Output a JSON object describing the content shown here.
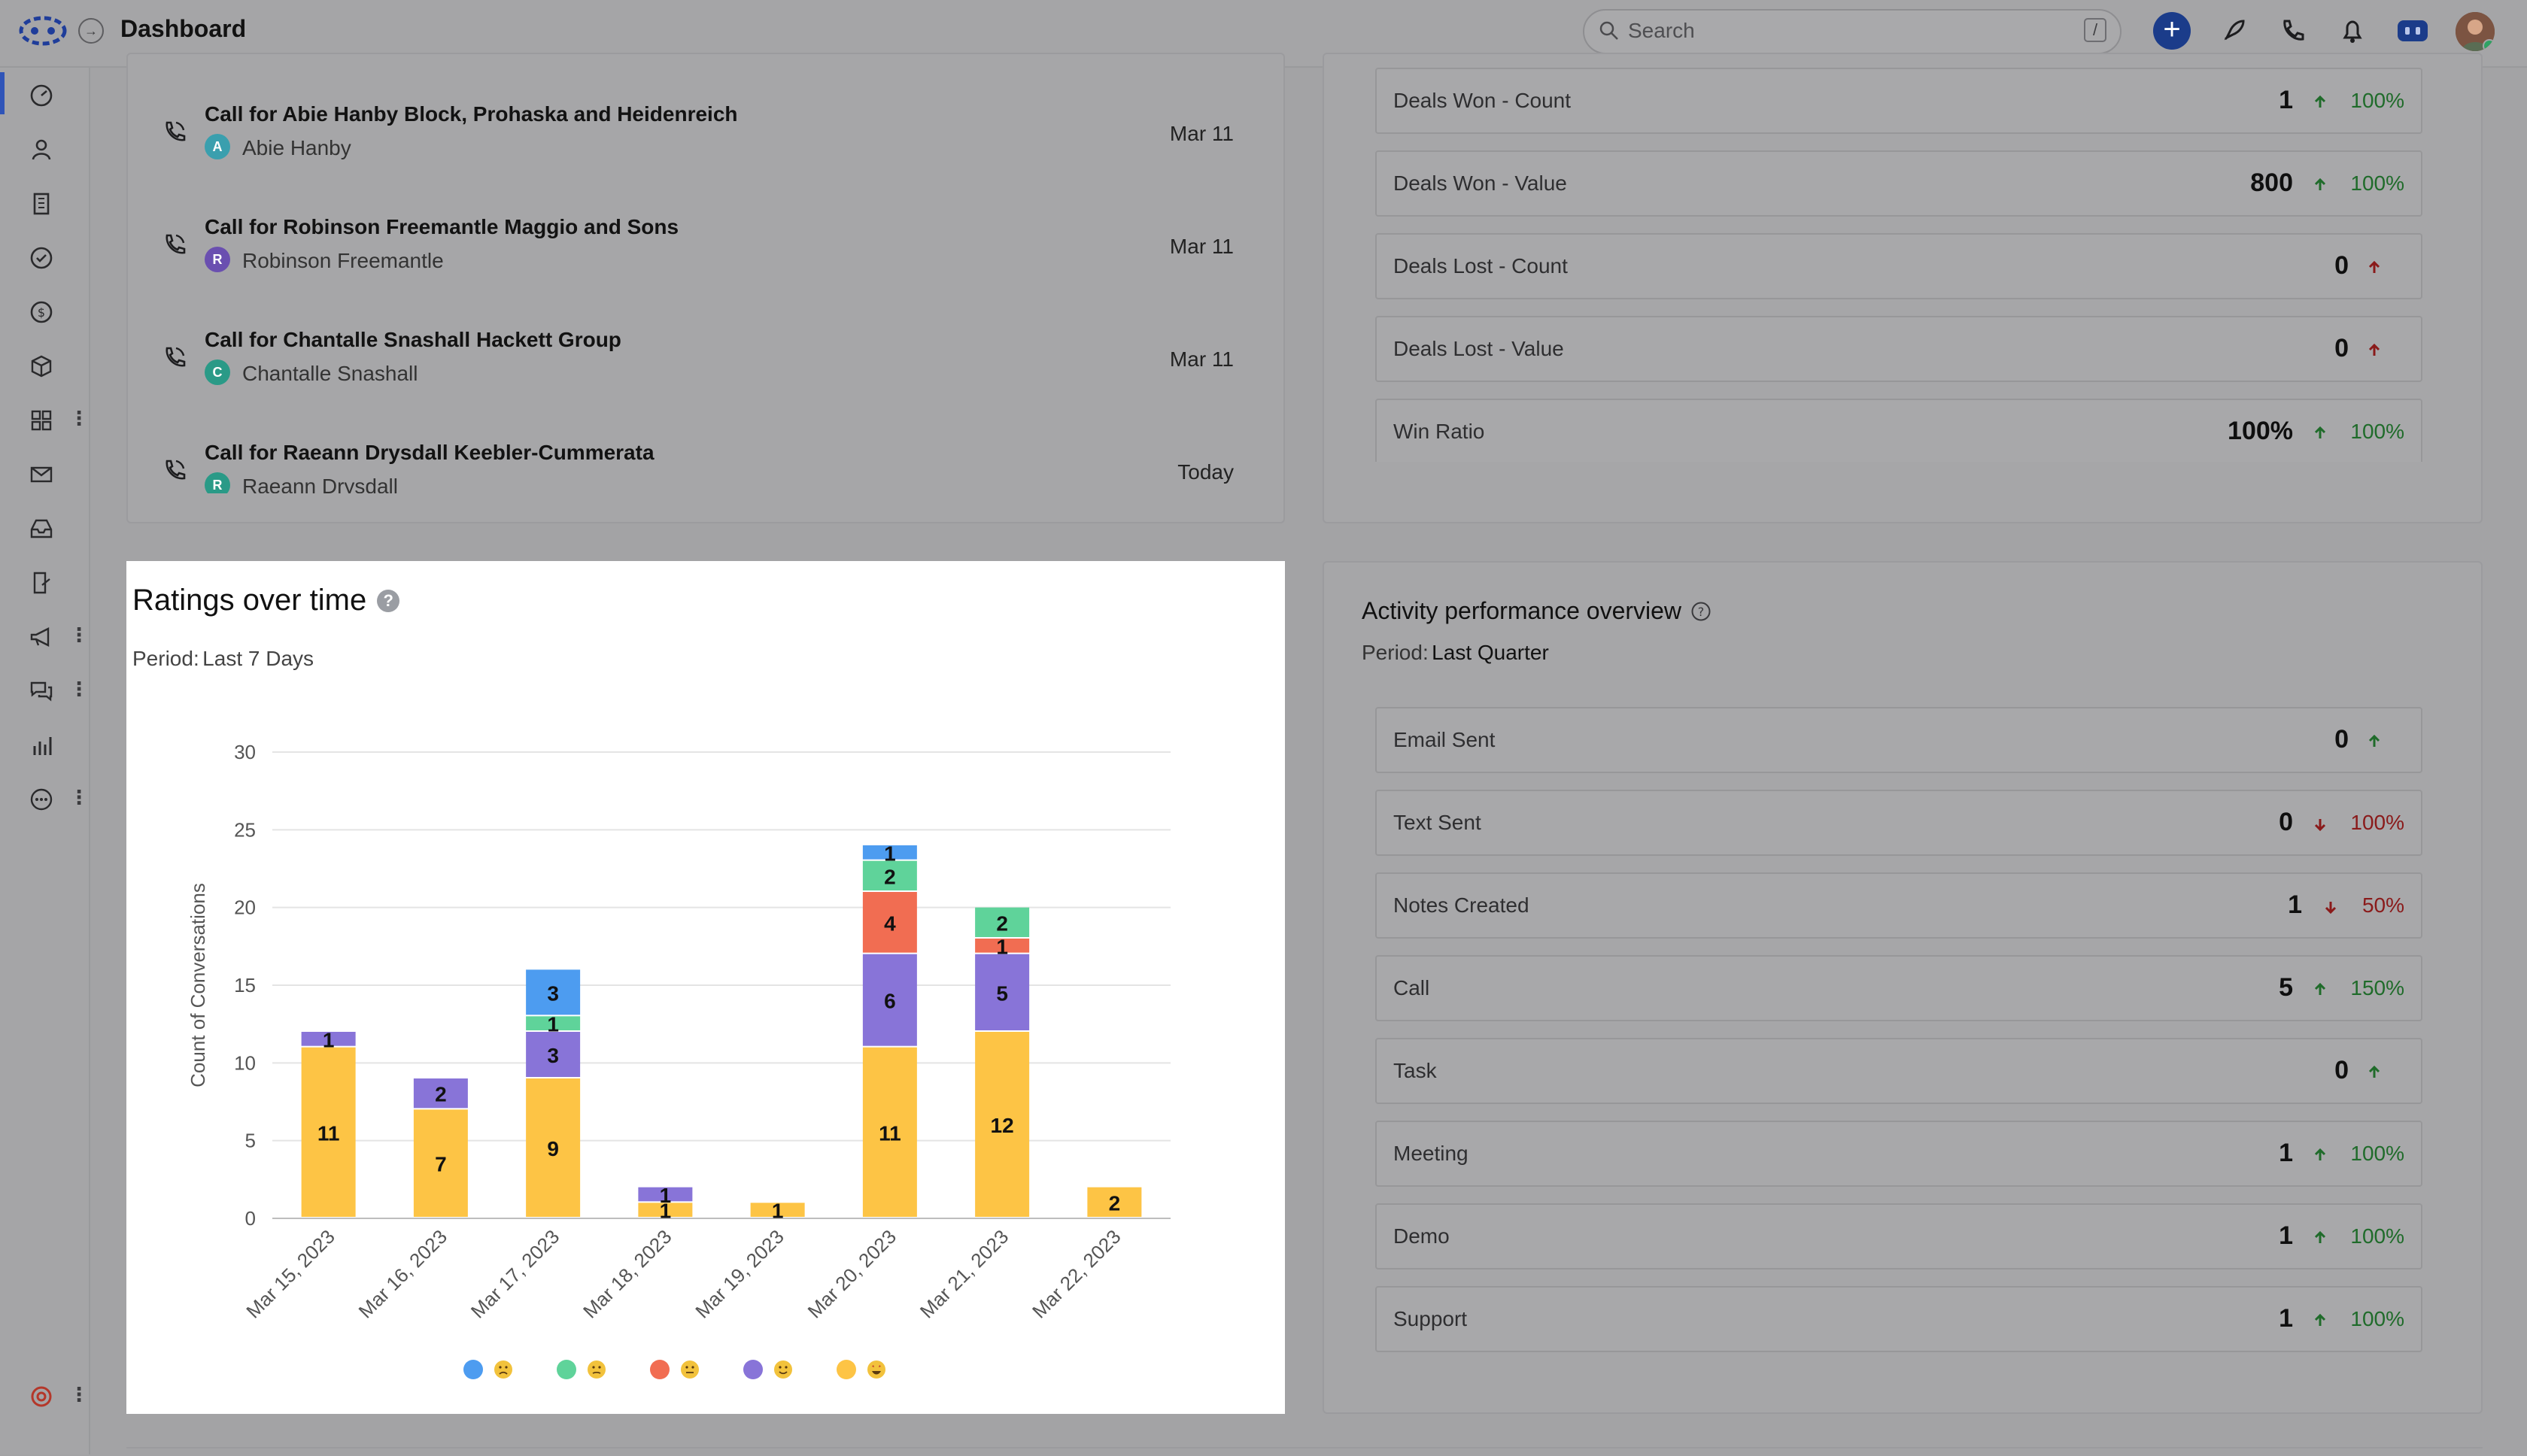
{
  "topbar": {
    "title": "Dashboard",
    "search_placeholder": "Search",
    "search_shortcut": "/",
    "plus_label": "+"
  },
  "calls": [
    {
      "title": "Call for Abie Hanby Block, Prohaska and Heidenreich",
      "person": "Abie Hanby",
      "initial": "A",
      "avatar_color": "#3a9fae",
      "date": "Mar 11"
    },
    {
      "title": "Call for Robinson Freemantle Maggio and Sons",
      "person": "Robinson Freemantle",
      "initial": "R",
      "avatar_color": "#6a4fb0",
      "date": "Mar 11"
    },
    {
      "title": "Call for Chantalle Snashall Hackett Group",
      "person": "Chantalle Snashall",
      "initial": "C",
      "avatar_color": "#2a9a87",
      "date": "Mar 11"
    },
    {
      "title": "Call for Raeann Drysdall Keebler-Cummerata",
      "person": "Raeann Drysdall",
      "initial": "R",
      "avatar_color": "#2a9a87",
      "date": "Today"
    }
  ],
  "deals": [
    {
      "label": "Deals Won - Count",
      "value": "1",
      "direction": "up",
      "pct": "100%"
    },
    {
      "label": "Deals Won - Value",
      "value": "800",
      "direction": "up",
      "pct": "100%"
    },
    {
      "label": "Deals Lost - Count",
      "value": "0",
      "direction": "up-red",
      "pct": ""
    },
    {
      "label": "Deals Lost - Value",
      "value": "0",
      "direction": "up-red",
      "pct": ""
    },
    {
      "label": "Win Ratio",
      "value": "100%",
      "direction": "up",
      "pct": "100%"
    }
  ],
  "ratings": {
    "title": "Ratings over time",
    "period_label": "Period:",
    "period_value": "Last 7 Days"
  },
  "activity": {
    "title": "Activity performance overview",
    "period_label": "Period:",
    "period_value": "Last Quarter",
    "items": [
      {
        "label": "Email Sent",
        "value": "0",
        "direction": "up",
        "pct": ""
      },
      {
        "label": "Text Sent",
        "value": "0",
        "direction": "down",
        "pct": "100%"
      },
      {
        "label": "Notes Created",
        "value": "1",
        "direction": "down",
        "pct": "50%"
      },
      {
        "label": "Call",
        "value": "5",
        "direction": "up",
        "pct": "150%"
      },
      {
        "label": "Task",
        "value": "0",
        "direction": "up",
        "pct": ""
      },
      {
        "label": "Meeting",
        "value": "1",
        "direction": "up",
        "pct": "100%"
      },
      {
        "label": "Demo",
        "value": "1",
        "direction": "up",
        "pct": "100%"
      },
      {
        "label": "Support",
        "value": "1",
        "direction": "up",
        "pct": "100%"
      }
    ]
  },
  "colors": {
    "very_poor": "#4d9cf0",
    "poor": "#5fd39a",
    "neutral": "#f16d52",
    "good": "#8874d8",
    "excellent": "#fdc445",
    "up": "#1f6b2a",
    "down": "#8a1a1a"
  },
  "chart_data": {
    "type": "bar",
    "stacked": true,
    "ylabel": "Count of Conversations",
    "ylim": [
      0,
      30
    ],
    "yticks": [
      0,
      5,
      10,
      15,
      20,
      25,
      30
    ],
    "categories": [
      "Mar 15, 2023",
      "Mar 16, 2023",
      "Mar 17, 2023",
      "Mar 18, 2023",
      "Mar 19, 2023",
      "Mar 20, 2023",
      "Mar 21, 2023",
      "Mar 22, 2023"
    ],
    "series": [
      {
        "key": "excellent",
        "color": "#fdc445",
        "values": [
          11,
          7,
          9,
          1,
          1,
          11,
          12,
          2
        ]
      },
      {
        "key": "good",
        "color": "#8874d8",
        "values": [
          1,
          2,
          3,
          1,
          0,
          6,
          5,
          0
        ]
      },
      {
        "key": "neutral",
        "color": "#f16d52",
        "values": [
          0,
          0,
          0,
          0,
          0,
          4,
          1,
          0
        ]
      },
      {
        "key": "poor",
        "color": "#5fd39a",
        "values": [
          0,
          0,
          1,
          0,
          0,
          2,
          2,
          0
        ]
      },
      {
        "key": "very_poor",
        "color": "#4d9cf0",
        "values": [
          0,
          0,
          3,
          0,
          0,
          1,
          0,
          0
        ]
      }
    ],
    "legend_position": "bottom"
  }
}
